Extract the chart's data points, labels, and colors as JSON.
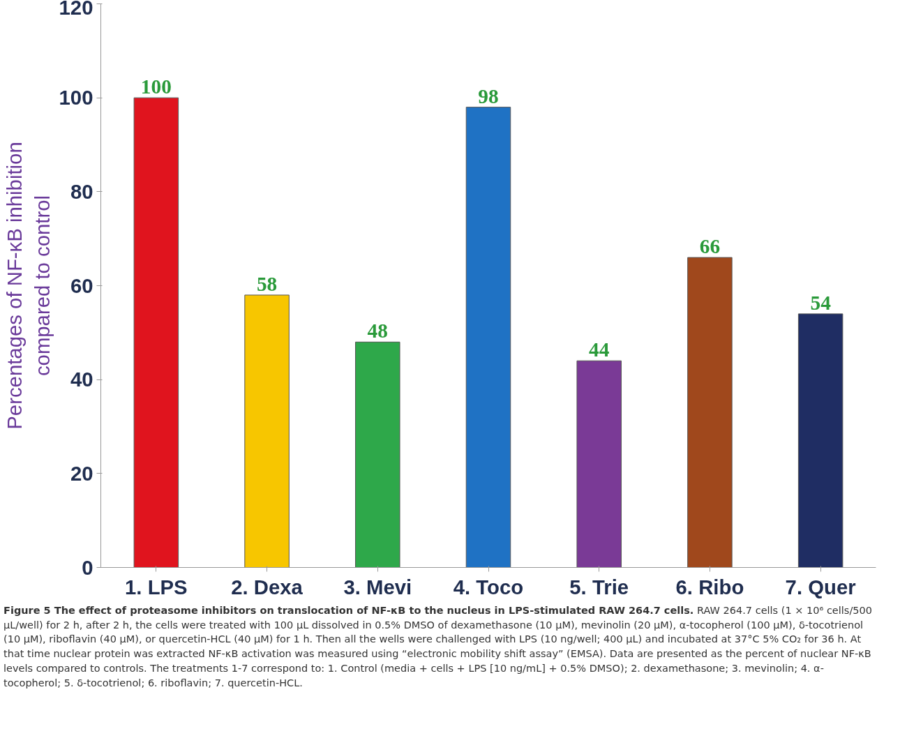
{
  "chart_data": {
    "type": "bar",
    "categories": [
      "1. LPS",
      "2. Dexa",
      "3. Mevi",
      "4. Toco",
      "5. Trie",
      "6. Ribo",
      "7. Quer"
    ],
    "values": [
      100,
      58,
      48,
      98,
      44,
      66,
      54
    ],
    "colors": [
      "#e0141e",
      "#f7c600",
      "#2ea84a",
      "#1f72c4",
      "#7a3a96",
      "#a0481c",
      "#1f2d63"
    ],
    "ylabel": "Percentages of NF-κB inhibition\ncompared to control",
    "ylim": [
      0,
      120
    ],
    "yticks": [
      0,
      20,
      40,
      60,
      80,
      100,
      120
    ],
    "grid": false,
    "data_labels": true,
    "annotations": [
      "Figure 5 The effect of proteasome inhibitors on translocation of NF-κB to the nucleus in LPS-stimulated RAW 264.7 cells.",
      "RAW 264.7 cells (1 × 10⁶ cells/500 μL/well) for 2 h, after 2 h, the cells were treated with 100 μL dissolved in 0.5% DMSO of dexamethasone (10 μM), mevinolin (20 μM), α-tocopherol (100 μM), δ-tocotrienol (10 μM), riboflavin (40 μM), or quercetin-HCL (40 μM) for 1 h. Then all the wells were challenged with LPS (10 ng/well; 400 μL) and incubated at 37°C 5% CO₂ for 36 h. At that time nuclear protein was extracted NF-κB activation was measured using “electronic mobility shift assay” (EMSA). Data are presented as the percent of nuclear NF-κB levels compared to controls. The treatments 1-7 correspond to: 1. Control (media + cells + LPS [10 ng/mL] + 0.5% DMSO); 2. dexamethasone; 3. mevinolin; 4. α-tocopherol; 5. δ-tocotrienol; 6. riboflavin; 7. quercetin-HCL."
    ]
  }
}
